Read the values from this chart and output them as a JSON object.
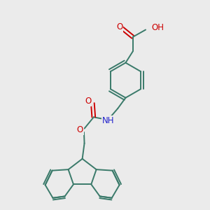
{
  "background_color": "#ebebeb",
  "bond_color": "#3a7a6a",
  "bond_width": 1.4,
  "atom_colors": {
    "O": "#cc0000",
    "N": "#2222cc",
    "C": "#3a7a6a",
    "H": "#555555"
  },
  "figsize": [
    3.0,
    3.0
  ],
  "dpi": 100,
  "xlim": [
    0,
    10
  ],
  "ylim": [
    0,
    10
  ]
}
